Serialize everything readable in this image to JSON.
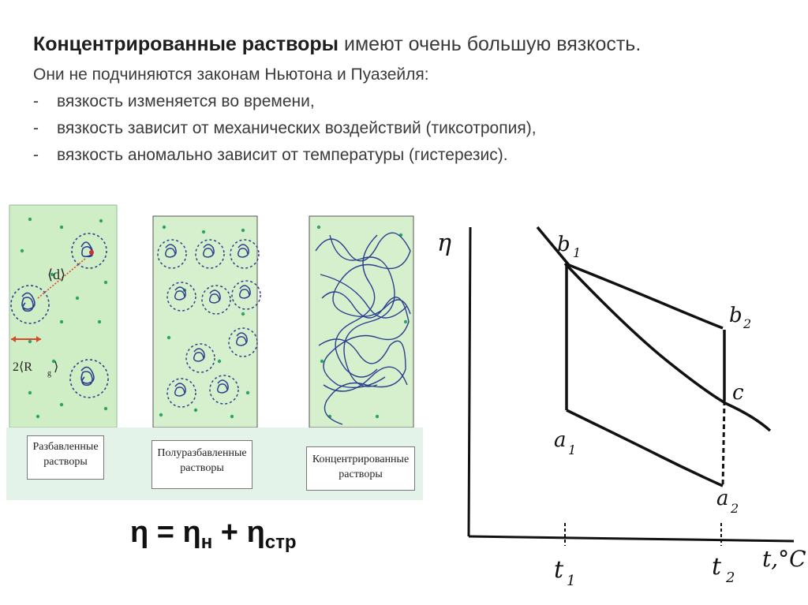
{
  "text": {
    "headline_bold": "Концентрированные растворы",
    "headline_rest": " имеют очень большую вязкость.",
    "line1": "Они не подчиняются законам Ньютона и Пуазейля:",
    "bullets": [
      "вязкость изменяется во времени,",
      "вязкость зависит от механических воздействий (тиксотропия),",
      "вязкость аномально зависит  от температуры (гистерезис)."
    ],
    "dash": "-"
  },
  "illustration": {
    "panels": [
      {
        "caption_l1": "Разбавленные",
        "caption_l2": "растворы"
      },
      {
        "caption_l1": "Полуразбавленные",
        "caption_l2": "растворы"
      },
      {
        "caption_l1": "Концентрированные",
        "caption_l2": "растворы"
      }
    ],
    "label_d": "⟨d⟩",
    "label_rg": "2⟨R",
    "label_rg_sub": "g",
    "label_rg_close": "⟩",
    "colors": {
      "panel_bg": "#cfeec6",
      "coil": "#2b3f8f",
      "dot": "#2fa36a",
      "arrow": "#d64a2a"
    }
  },
  "formula": {
    "eta": "η",
    "eq": " = ",
    "plus": " + ",
    "sub_n": "н",
    "sub_str": "стр"
  },
  "graph": {
    "y_label": "η",
    "x_label": "t,°C",
    "t1": "t",
    "t1_sub": "1",
    "t2": "t",
    "t2_sub": "2",
    "b1": "b",
    "b1_sub": "1",
    "b2": "b",
    "b2_sub": "2",
    "c": "c",
    "a1": "a",
    "a1_sub": "1",
    "a2": "a",
    "a2_sub": "2"
  }
}
